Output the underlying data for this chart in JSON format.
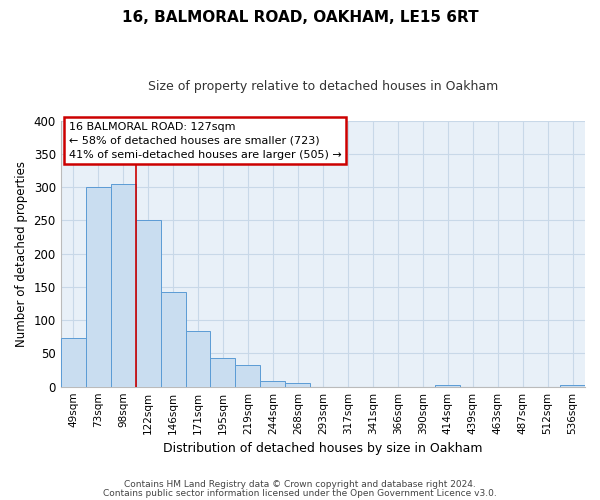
{
  "title": "16, BALMORAL ROAD, OAKHAM, LE15 6RT",
  "subtitle": "Size of property relative to detached houses in Oakham",
  "xlabel": "Distribution of detached houses by size in Oakham",
  "ylabel": "Number of detached properties",
  "bar_labels": [
    "49sqm",
    "73sqm",
    "98sqm",
    "122sqm",
    "146sqm",
    "171sqm",
    "195sqm",
    "219sqm",
    "244sqm",
    "268sqm",
    "293sqm",
    "317sqm",
    "341sqm",
    "366sqm",
    "390sqm",
    "414sqm",
    "439sqm",
    "463sqm",
    "487sqm",
    "512sqm",
    "536sqm"
  ],
  "bar_heights": [
    73,
    300,
    305,
    250,
    143,
    83,
    43,
    32,
    9,
    6,
    0,
    0,
    0,
    0,
    0,
    2,
    0,
    0,
    0,
    0,
    2
  ],
  "bar_color": "#c9ddf0",
  "bar_edge_color": "#5b9bd5",
  "ylim": [
    0,
    400
  ],
  "yticks": [
    0,
    50,
    100,
    150,
    200,
    250,
    300,
    350,
    400
  ],
  "property_line_x": 3.0,
  "property_line_color": "#cc0000",
  "annotation_title": "16 BALMORAL ROAD: 127sqm",
  "annotation_line1": "← 58% of detached houses are smaller (723)",
  "annotation_line2": "41% of semi-detached houses are larger (505) →",
  "annotation_box_color": "#ffffff",
  "annotation_box_edge": "#cc0000",
  "footer1": "Contains HM Land Registry data © Crown copyright and database right 2024.",
  "footer2": "Contains public sector information licensed under the Open Government Licence v3.0.",
  "background_color": "#ffffff",
  "plot_bg_color": "#e8f0f8",
  "grid_color": "#c8d8e8",
  "title_fontsize": 11,
  "subtitle_fontsize": 9
}
